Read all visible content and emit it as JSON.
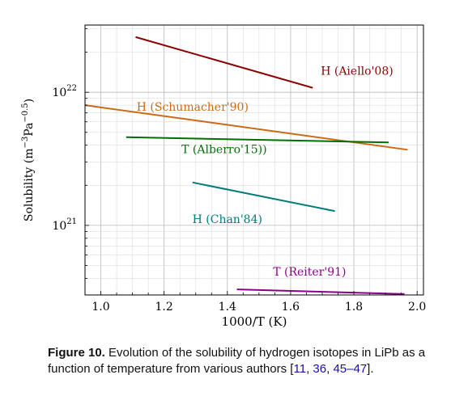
{
  "chart_data": {
    "type": "line",
    "xlabel": "1000/T (K)",
    "ylabel": "Solubility (m^-3 Pa^-0.5)",
    "yscale": "log",
    "xlim": [
      0.95,
      2.02
    ],
    "ylim": [
      3e+20,
      3.2e+22
    ],
    "x_ticks": [
      1.0,
      1.2,
      1.4,
      1.6,
      1.8,
      2.0
    ],
    "x_tick_labels": [
      "1.0",
      "1.2",
      "1.4",
      "1.6",
      "1.8",
      "2.0"
    ],
    "y_ticks": [
      1e+21,
      1e+22
    ],
    "y_tick_labels": [
      "10^21",
      "10^22"
    ],
    "grid": true,
    "series": [
      {
        "name": "H (Aiello'08)",
        "color": "#8b0000",
        "x": [
          1.11,
          1.67
        ],
        "y": [
          2.6e+22,
          1.08e+22
        ],
        "label_at": [
          1.81,
          1.45e+22
        ]
      },
      {
        "name": "H (Schumacher'90)",
        "color": "#cc6a14",
        "x": [
          0.95,
          1.97
        ],
        "y": [
          8e+21,
          3.7e+21
        ],
        "label_at": [
          1.29,
          7.8e+21
        ]
      },
      {
        "name": "T (Alberro'15))",
        "color": "#007000",
        "x": [
          1.08,
          1.91
        ],
        "y": [
          4.6e+21,
          4.2e+21
        ],
        "label_at": [
          1.39,
          3.75e+21
        ]
      },
      {
        "name": "H (Chan'84)",
        "color": "#007b7b",
        "x": [
          1.29,
          1.74
        ],
        "y": [
          2.1e+21,
          1.28e+21
        ],
        "label_at": [
          1.4,
          1.12e+21
        ]
      },
      {
        "name": "T (Reiter'91)",
        "color": "#8b008b",
        "x": [
          1.43,
          1.96
        ],
        "y": [
          3.3e+20,
          3.05e+20
        ],
        "label_at": [
          1.66,
          4.5e+20
        ]
      }
    ]
  },
  "caption": {
    "label": "Figure 10.",
    "text_1": " Evolution of the solubility of hydrogen isotopes in LiPb as a function of temperature from various authors [",
    "ref_1": "11",
    "sep_1": ", ",
    "ref_2": "36",
    "sep_2": ", ",
    "ref_3": "45–47",
    "text_2": "]."
  }
}
